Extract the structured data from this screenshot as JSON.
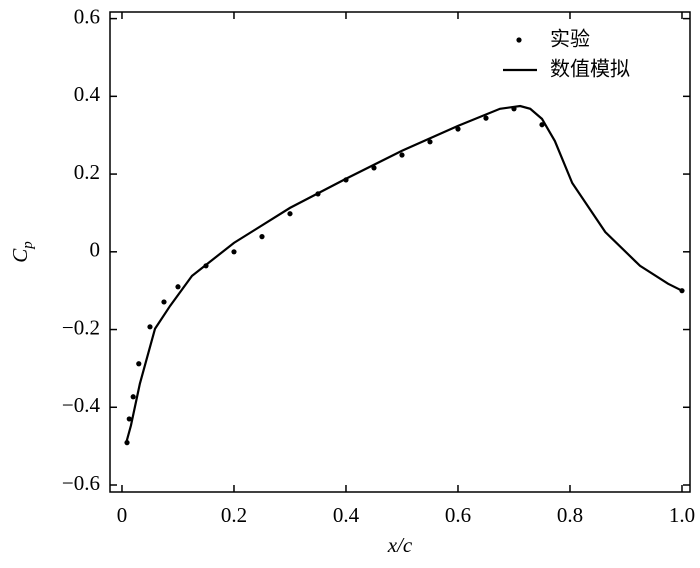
{
  "chart_data": {
    "type": "line",
    "x_label": "x/c",
    "y_label": [
      "C",
      "p"
    ],
    "xlim": [
      -0.0214,
      1.0143
    ],
    "ylim": [
      -0.618,
      0.617
    ],
    "xticks": [
      0,
      0.2,
      0.4,
      0.6,
      0.8,
      {
        "value": 1.0,
        "label": "1.0"
      }
    ],
    "yticks": [
      {
        "value": -0.6,
        "label": "−0.6"
      },
      {
        "value": -0.4,
        "label": "−0.4"
      },
      {
        "value": -0.2,
        "label": "−0.2"
      },
      0,
      0.2,
      0.4,
      0.6
    ],
    "legend": "upper right",
    "series": [
      {
        "name": "实验",
        "style": "markers",
        "color": "#000000",
        "x": [
          0.009,
          0.013,
          0.02,
          0.03,
          0.05,
          0.075,
          0.1,
          0.15,
          0.2,
          0.25,
          0.3,
          0.35,
          0.4,
          0.45,
          0.5,
          0.55,
          0.6,
          0.65,
          0.7,
          0.75,
          1.0
        ],
        "values": [
          -0.491,
          -0.43,
          -0.373,
          -0.288,
          -0.193,
          -0.129,
          -0.09,
          -0.036,
          0.0,
          0.039,
          0.098,
          0.149,
          0.185,
          0.216,
          0.249,
          0.283,
          0.316,
          0.344,
          0.368,
          0.327,
          -0.1
        ]
      },
      {
        "name": "数值模拟",
        "style": "line",
        "color": "#000000",
        "x": [
          0.007,
          0.016,
          0.032,
          0.059,
          0.086,
          0.125,
          0.2,
          0.3,
          0.4,
          0.5,
          0.6,
          0.675,
          0.711,
          0.729,
          0.75,
          0.773,
          0.804,
          0.863,
          0.925,
          0.975,
          1.0
        ],
        "values": [
          -0.494,
          -0.447,
          -0.339,
          -0.198,
          -0.139,
          -0.062,
          0.023,
          0.113,
          0.188,
          0.26,
          0.324,
          0.368,
          0.375,
          0.368,
          0.342,
          0.285,
          0.177,
          0.051,
          -0.036,
          -0.082,
          -0.1
        ]
      }
    ]
  }
}
